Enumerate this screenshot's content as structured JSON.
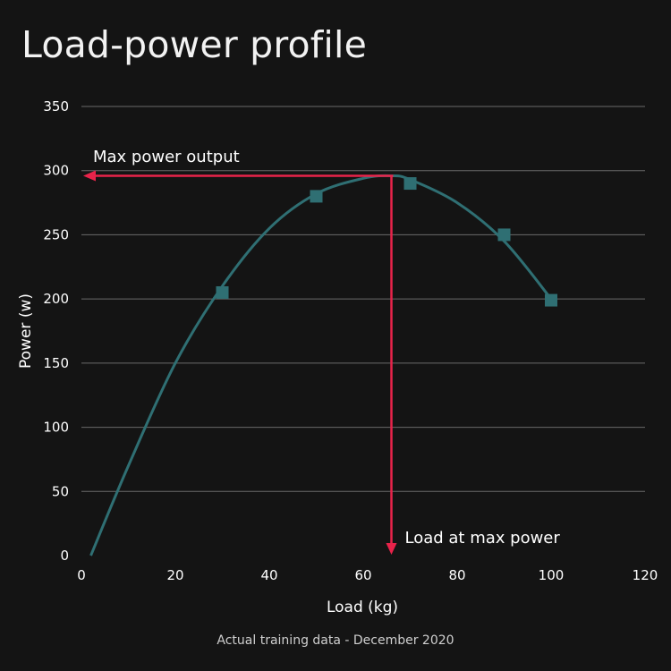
{
  "title": "Load-power profile",
  "caption": "Actual training data - December 2020",
  "colors": {
    "background": "#141414",
    "grid": "#6a6a6a",
    "series": "#2f6f73",
    "annotation": "#e8234a",
    "text": "#ffffff"
  },
  "chart_data": {
    "type": "scatter",
    "title": "Load-power profile",
    "xlabel": "Load (kg)",
    "ylabel": "Power (w)",
    "xlim": [
      0,
      120
    ],
    "ylim": [
      0,
      350
    ],
    "xticks": [
      0,
      20,
      40,
      60,
      80,
      100,
      120
    ],
    "yticks": [
      0,
      50,
      100,
      150,
      200,
      250,
      300,
      350
    ],
    "grid": "horizontal",
    "series": [
      {
        "x": [
          30,
          50,
          70,
          90,
          100
        ],
        "y": [
          205,
          280,
          290,
          250,
          199
        ],
        "marker": "square"
      }
    ],
    "fit_curve": {
      "x": [
        2,
        10,
        20,
        30,
        40,
        50,
        60,
        66,
        70,
        80,
        90,
        100
      ],
      "y": [
        0,
        70,
        150,
        210,
        255,
        282,
        294,
        296,
        293,
        275,
        245,
        200
      ]
    },
    "annotations": [
      {
        "text": "Max power output",
        "y": 296
      },
      {
        "text": "Load at max power",
        "x": 66
      }
    ]
  }
}
